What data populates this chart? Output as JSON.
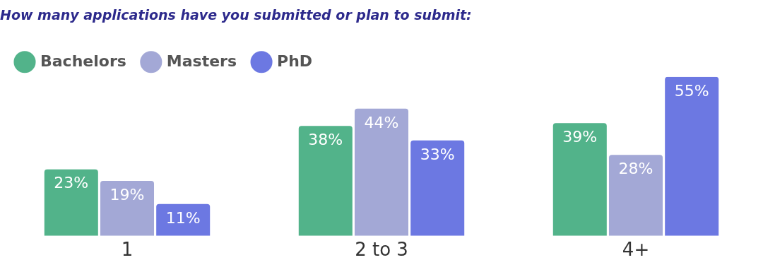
{
  "chart_data": {
    "type": "bar",
    "title": "How many applications have you submitted or plan to submit:",
    "categories": [
      "1",
      "2 to 3",
      "4+"
    ],
    "series": [
      {
        "name": "Bachelors",
        "color": "#52b38a",
        "values": [
          23,
          38,
          39
        ],
        "value_labels": [
          "23%",
          "38%",
          "39%"
        ]
      },
      {
        "name": "Masters",
        "color": "#a3a8d6",
        "values": [
          19,
          44,
          28
        ],
        "value_labels": [
          "19%",
          "44%",
          "28%"
        ]
      },
      {
        "name": "PhD",
        "color": "#6c78e2",
        "values": [
          11,
          33,
          55
        ],
        "value_labels": [
          "11%",
          "33%",
          "55%"
        ]
      }
    ],
    "grid": false,
    "legend": "top left"
  }
}
